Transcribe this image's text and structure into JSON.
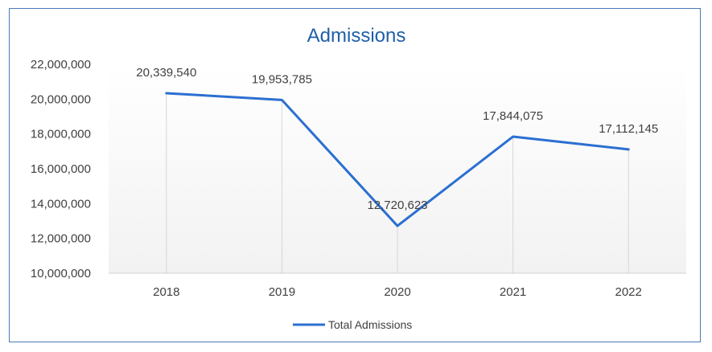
{
  "chart_data": {
    "type": "line",
    "title": "Admissions",
    "xlabel": "",
    "ylabel": "",
    "categories": [
      "2018",
      "2019",
      "2020",
      "2021",
      "2022"
    ],
    "series": [
      {
        "name": "Total Admissions",
        "values": [
          20339540,
          19953785,
          12720623,
          17844075,
          17112145
        ],
        "labels": [
          "20,339,540",
          "19,953,785",
          "12,720,623",
          "17,844,075",
          "17,112,145"
        ],
        "color": "#2b6fd1"
      }
    ],
    "ylim": [
      10000000,
      22000000
    ],
    "yticks": [
      10000000,
      12000000,
      14000000,
      16000000,
      18000000,
      20000000,
      22000000
    ],
    "ytick_labels": [
      "10,000,000",
      "12,000,000",
      "14,000,000",
      "16,000,000",
      "18,000,000",
      "20,000,000",
      "22,000,000"
    ],
    "grid": false,
    "drop_lines": true,
    "legend_position": "bottom"
  }
}
